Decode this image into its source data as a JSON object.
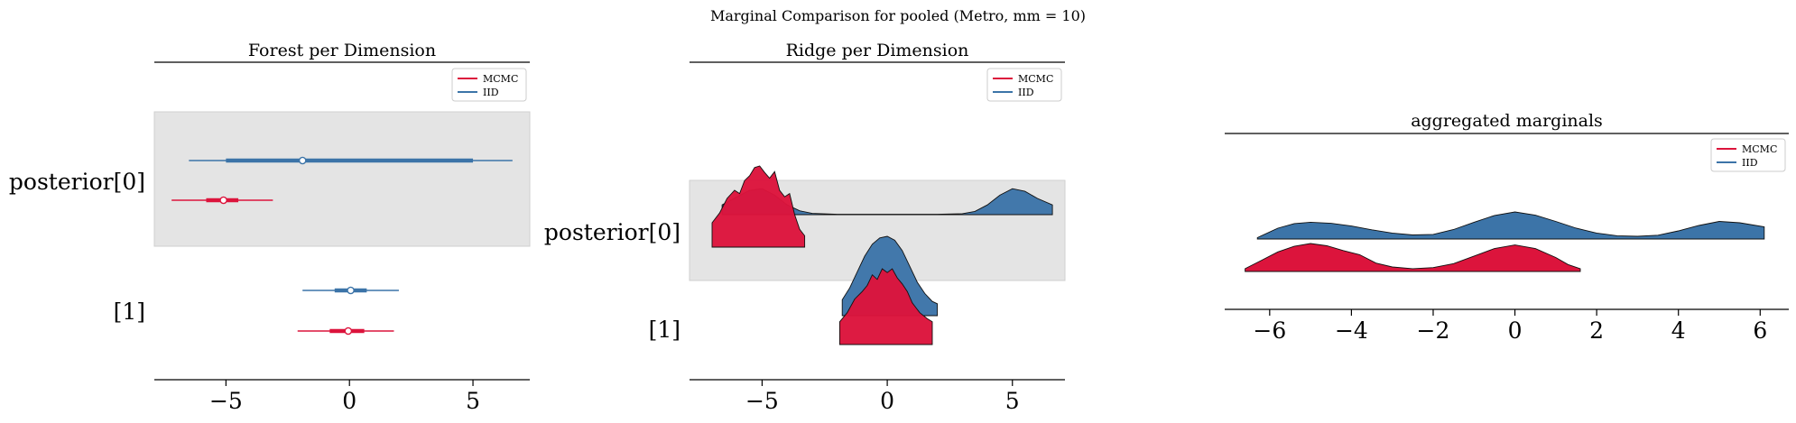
{
  "suptitle": "Marginal Comparison for pooled (Metro, mm = 10)",
  "colors": {
    "mcmc": "#dc143c",
    "iid": "#3c74a8",
    "band": "#e4e4e4"
  },
  "chart_data": [
    {
      "type": "forest",
      "title": "Forest per Dimension",
      "yticklabels": [
        "posterior[0]",
        "[1]"
      ],
      "xticks": [
        -5,
        0,
        5
      ],
      "xticklabels": [
        "−5",
        "0",
        "5"
      ],
      "xlim": [
        -7.9,
        7.3
      ],
      "legend": {
        "entries": [
          "MCMC",
          "IID"
        ],
        "placement": "upper-right"
      },
      "series": [
        {
          "name": "IID",
          "dimensions": [
            {
              "label": "posterior[0]",
              "hdi_low": -6.5,
              "q25": -5.0,
              "median": -1.9,
              "q75": 5.0,
              "hdi_high": 6.6
            },
            {
              "label": "[1]",
              "hdi_low": -1.9,
              "q25": -0.6,
              "median": 0.05,
              "q75": 0.7,
              "hdi_high": 2.0
            }
          ]
        },
        {
          "name": "MCMC",
          "dimensions": [
            {
              "label": "posterior[0]",
              "hdi_low": -7.2,
              "q25": -5.8,
              "median": -5.1,
              "q75": -4.5,
              "hdi_high": -3.1
            },
            {
              "label": "[1]",
              "hdi_low": -2.1,
              "q25": -0.8,
              "median": -0.05,
              "q75": 0.6,
              "hdi_high": 1.8
            }
          ]
        }
      ]
    },
    {
      "type": "ridge",
      "title": "Ridge per Dimension",
      "yticklabels": [
        "posterior[0]",
        "[1]"
      ],
      "xticks": [
        -5,
        0,
        5
      ],
      "xticklabels": [
        "−5",
        "0",
        "5"
      ],
      "xlim": [
        -7.9,
        7.1
      ],
      "legend": {
        "entries": [
          "MCMC",
          "IID"
        ],
        "placement": "upper-right"
      },
      "series": [
        {
          "name": "IID",
          "dimensions": [
            {
              "label": "posterior[0]",
              "x": [
                -6.6,
                -6.0,
                -5.5,
                -5.0,
                -4.5,
                -4.0,
                -3.5,
                -3.0,
                -2.0,
                -1.0,
                0.0,
                1.0,
                2.0,
                3.0,
                3.5,
                4.0,
                4.5,
                5.0,
                5.5,
                6.0,
                6.6
              ],
              "density": [
                0.3,
                0.55,
                0.75,
                0.8,
                0.6,
                0.3,
                0.12,
                0.04,
                0.01,
                0.01,
                0.01,
                0.01,
                0.01,
                0.03,
                0.1,
                0.3,
                0.6,
                0.8,
                0.72,
                0.5,
                0.3
              ]
            },
            {
              "label": "[1]",
              "x": [
                -1.8,
                -1.5,
                -1.2,
                -0.9,
                -0.6,
                -0.3,
                0.0,
                0.3,
                0.6,
                0.9,
                1.2,
                1.5,
                1.8,
                2.0
              ],
              "density": [
                0.2,
                0.35,
                0.55,
                0.75,
                0.9,
                0.98,
                1.0,
                0.95,
                0.82,
                0.62,
                0.42,
                0.28,
                0.18,
                0.15
              ]
            }
          ]
        },
        {
          "name": "MCMC",
          "dimensions": [
            {
              "label": "posterior[0]",
              "x": [
                -7.0,
                -6.7,
                -6.4,
                -6.1,
                -5.9,
                -5.7,
                -5.5,
                -5.3,
                -5.1,
                -4.9,
                -4.7,
                -4.5,
                -4.3,
                -4.1,
                -3.9,
                -3.7,
                -3.5,
                -3.3
              ],
              "density": [
                0.3,
                0.42,
                0.6,
                0.7,
                0.66,
                0.82,
                0.88,
                0.98,
                1.0,
                0.92,
                0.85,
                0.93,
                0.7,
                0.62,
                0.66,
                0.4,
                0.22,
                0.14
              ]
            },
            {
              "label": "[1]",
              "x": [
                -1.9,
                -1.6,
                -1.3,
                -1.0,
                -0.8,
                -0.6,
                -0.4,
                -0.2,
                0.0,
                0.2,
                0.4,
                0.6,
                0.8,
                1.0,
                1.3,
                1.6,
                1.8
              ],
              "density": [
                0.3,
                0.42,
                0.6,
                0.7,
                0.78,
                0.92,
                0.86,
                1.0,
                0.95,
                1.0,
                0.88,
                0.8,
                0.7,
                0.55,
                0.42,
                0.34,
                0.3
              ]
            }
          ]
        }
      ]
    },
    {
      "type": "area",
      "title": "aggregated marginals",
      "xticks": [
        -6,
        -4,
        -2,
        0,
        2,
        4,
        6
      ],
      "xticklabels": [
        "−6",
        "−4",
        "−2",
        "0",
        "2",
        "4",
        "6"
      ],
      "xlim": [
        -7.1,
        6.7
      ],
      "legend": {
        "entries": [
          "MCMC",
          "IID"
        ],
        "placement": "upper-right"
      },
      "series": [
        {
          "name": "IID",
          "x": [
            -6.3,
            -5.8,
            -5.4,
            -5.0,
            -4.5,
            -4.0,
            -3.5,
            -3.0,
            -2.5,
            -2.0,
            -1.5,
            -1.0,
            -0.5,
            0.0,
            0.5,
            1.0,
            1.5,
            2.0,
            2.5,
            3.0,
            3.5,
            4.0,
            4.5,
            5.0,
            5.5,
            6.1
          ],
          "density": [
            0.05,
            0.4,
            0.57,
            0.62,
            0.58,
            0.48,
            0.34,
            0.22,
            0.15,
            0.17,
            0.35,
            0.62,
            0.87,
            1.0,
            0.88,
            0.65,
            0.4,
            0.22,
            0.12,
            0.1,
            0.14,
            0.3,
            0.5,
            0.65,
            0.6,
            0.45
          ]
        },
        {
          "name": "MCMC",
          "x": [
            -6.6,
            -6.2,
            -5.8,
            -5.4,
            -5.0,
            -4.6,
            -4.2,
            -3.8,
            -3.4,
            -3.0,
            -2.5,
            -2.0,
            -1.5,
            -1.0,
            -0.5,
            0.0,
            0.5,
            1.0,
            1.3,
            1.6
          ],
          "density": [
            0.1,
            0.4,
            0.7,
            0.9,
            1.0,
            0.92,
            0.75,
            0.6,
            0.3,
            0.16,
            0.1,
            0.14,
            0.28,
            0.55,
            0.82,
            0.95,
            0.82,
            0.5,
            0.25,
            0.1
          ]
        }
      ]
    }
  ]
}
